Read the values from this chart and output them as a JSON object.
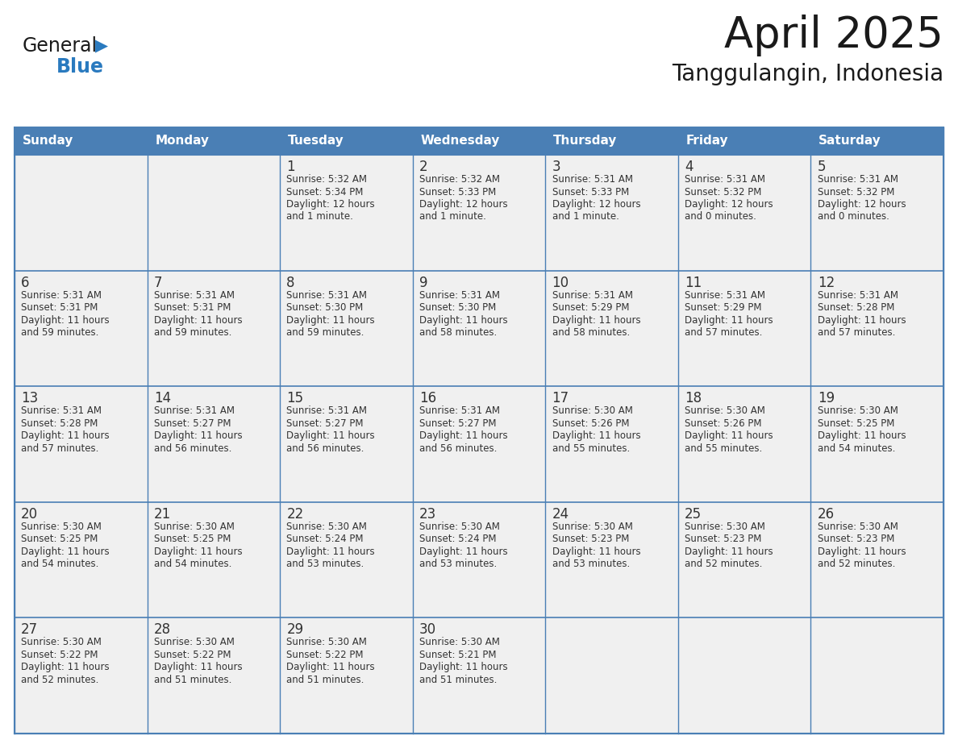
{
  "title": "April 2025",
  "subtitle": "Tanggulangin, Indonesia",
  "days_of_week": [
    "Sunday",
    "Monday",
    "Tuesday",
    "Wednesday",
    "Thursday",
    "Friday",
    "Saturday"
  ],
  "header_bg": "#4a7fb5",
  "header_text": "#ffffff",
  "cell_bg": "#f0f0f0",
  "cell_bg_empty": "#f0f0f0",
  "cell_bg_white": "#ffffff",
  "border_color": "#4a7fb5",
  "row_divider_color": "#4a7fb5",
  "title_color": "#1a1a1a",
  "text_color": "#333333",
  "logo_blue": "#2a7abf",
  "logo_dark": "#1a1a1a",
  "weeks": [
    [
      {
        "day": "",
        "sunrise": "",
        "sunset": "",
        "daylight": ""
      },
      {
        "day": "",
        "sunrise": "",
        "sunset": "",
        "daylight": ""
      },
      {
        "day": "1",
        "sunrise": "Sunrise: 5:32 AM",
        "sunset": "Sunset: 5:34 PM",
        "daylight": "Daylight: 12 hours\nand 1 minute."
      },
      {
        "day": "2",
        "sunrise": "Sunrise: 5:32 AM",
        "sunset": "Sunset: 5:33 PM",
        "daylight": "Daylight: 12 hours\nand 1 minute."
      },
      {
        "day": "3",
        "sunrise": "Sunrise: 5:31 AM",
        "sunset": "Sunset: 5:33 PM",
        "daylight": "Daylight: 12 hours\nand 1 minute."
      },
      {
        "day": "4",
        "sunrise": "Sunrise: 5:31 AM",
        "sunset": "Sunset: 5:32 PM",
        "daylight": "Daylight: 12 hours\nand 0 minutes."
      },
      {
        "day": "5",
        "sunrise": "Sunrise: 5:31 AM",
        "sunset": "Sunset: 5:32 PM",
        "daylight": "Daylight: 12 hours\nand 0 minutes."
      }
    ],
    [
      {
        "day": "6",
        "sunrise": "Sunrise: 5:31 AM",
        "sunset": "Sunset: 5:31 PM",
        "daylight": "Daylight: 11 hours\nand 59 minutes."
      },
      {
        "day": "7",
        "sunrise": "Sunrise: 5:31 AM",
        "sunset": "Sunset: 5:31 PM",
        "daylight": "Daylight: 11 hours\nand 59 minutes."
      },
      {
        "day": "8",
        "sunrise": "Sunrise: 5:31 AM",
        "sunset": "Sunset: 5:30 PM",
        "daylight": "Daylight: 11 hours\nand 59 minutes."
      },
      {
        "day": "9",
        "sunrise": "Sunrise: 5:31 AM",
        "sunset": "Sunset: 5:30 PM",
        "daylight": "Daylight: 11 hours\nand 58 minutes."
      },
      {
        "day": "10",
        "sunrise": "Sunrise: 5:31 AM",
        "sunset": "Sunset: 5:29 PM",
        "daylight": "Daylight: 11 hours\nand 58 minutes."
      },
      {
        "day": "11",
        "sunrise": "Sunrise: 5:31 AM",
        "sunset": "Sunset: 5:29 PM",
        "daylight": "Daylight: 11 hours\nand 57 minutes."
      },
      {
        "day": "12",
        "sunrise": "Sunrise: 5:31 AM",
        "sunset": "Sunset: 5:28 PM",
        "daylight": "Daylight: 11 hours\nand 57 minutes."
      }
    ],
    [
      {
        "day": "13",
        "sunrise": "Sunrise: 5:31 AM",
        "sunset": "Sunset: 5:28 PM",
        "daylight": "Daylight: 11 hours\nand 57 minutes."
      },
      {
        "day": "14",
        "sunrise": "Sunrise: 5:31 AM",
        "sunset": "Sunset: 5:27 PM",
        "daylight": "Daylight: 11 hours\nand 56 minutes."
      },
      {
        "day": "15",
        "sunrise": "Sunrise: 5:31 AM",
        "sunset": "Sunset: 5:27 PM",
        "daylight": "Daylight: 11 hours\nand 56 minutes."
      },
      {
        "day": "16",
        "sunrise": "Sunrise: 5:31 AM",
        "sunset": "Sunset: 5:27 PM",
        "daylight": "Daylight: 11 hours\nand 56 minutes."
      },
      {
        "day": "17",
        "sunrise": "Sunrise: 5:30 AM",
        "sunset": "Sunset: 5:26 PM",
        "daylight": "Daylight: 11 hours\nand 55 minutes."
      },
      {
        "day": "18",
        "sunrise": "Sunrise: 5:30 AM",
        "sunset": "Sunset: 5:26 PM",
        "daylight": "Daylight: 11 hours\nand 55 minutes."
      },
      {
        "day": "19",
        "sunrise": "Sunrise: 5:30 AM",
        "sunset": "Sunset: 5:25 PM",
        "daylight": "Daylight: 11 hours\nand 54 minutes."
      }
    ],
    [
      {
        "day": "20",
        "sunrise": "Sunrise: 5:30 AM",
        "sunset": "Sunset: 5:25 PM",
        "daylight": "Daylight: 11 hours\nand 54 minutes."
      },
      {
        "day": "21",
        "sunrise": "Sunrise: 5:30 AM",
        "sunset": "Sunset: 5:25 PM",
        "daylight": "Daylight: 11 hours\nand 54 minutes."
      },
      {
        "day": "22",
        "sunrise": "Sunrise: 5:30 AM",
        "sunset": "Sunset: 5:24 PM",
        "daylight": "Daylight: 11 hours\nand 53 minutes."
      },
      {
        "day": "23",
        "sunrise": "Sunrise: 5:30 AM",
        "sunset": "Sunset: 5:24 PM",
        "daylight": "Daylight: 11 hours\nand 53 minutes."
      },
      {
        "day": "24",
        "sunrise": "Sunrise: 5:30 AM",
        "sunset": "Sunset: 5:23 PM",
        "daylight": "Daylight: 11 hours\nand 53 minutes."
      },
      {
        "day": "25",
        "sunrise": "Sunrise: 5:30 AM",
        "sunset": "Sunset: 5:23 PM",
        "daylight": "Daylight: 11 hours\nand 52 minutes."
      },
      {
        "day": "26",
        "sunrise": "Sunrise: 5:30 AM",
        "sunset": "Sunset: 5:23 PM",
        "daylight": "Daylight: 11 hours\nand 52 minutes."
      }
    ],
    [
      {
        "day": "27",
        "sunrise": "Sunrise: 5:30 AM",
        "sunset": "Sunset: 5:22 PM",
        "daylight": "Daylight: 11 hours\nand 52 minutes."
      },
      {
        "day": "28",
        "sunrise": "Sunrise: 5:30 AM",
        "sunset": "Sunset: 5:22 PM",
        "daylight": "Daylight: 11 hours\nand 51 minutes."
      },
      {
        "day": "29",
        "sunrise": "Sunrise: 5:30 AM",
        "sunset": "Sunset: 5:22 PM",
        "daylight": "Daylight: 11 hours\nand 51 minutes."
      },
      {
        "day": "30",
        "sunrise": "Sunrise: 5:30 AM",
        "sunset": "Sunset: 5:21 PM",
        "daylight": "Daylight: 11 hours\nand 51 minutes."
      },
      {
        "day": "",
        "sunrise": "",
        "sunset": "",
        "daylight": ""
      },
      {
        "day": "",
        "sunrise": "",
        "sunset": "",
        "daylight": ""
      },
      {
        "day": "",
        "sunrise": "",
        "sunset": "",
        "daylight": ""
      }
    ]
  ]
}
